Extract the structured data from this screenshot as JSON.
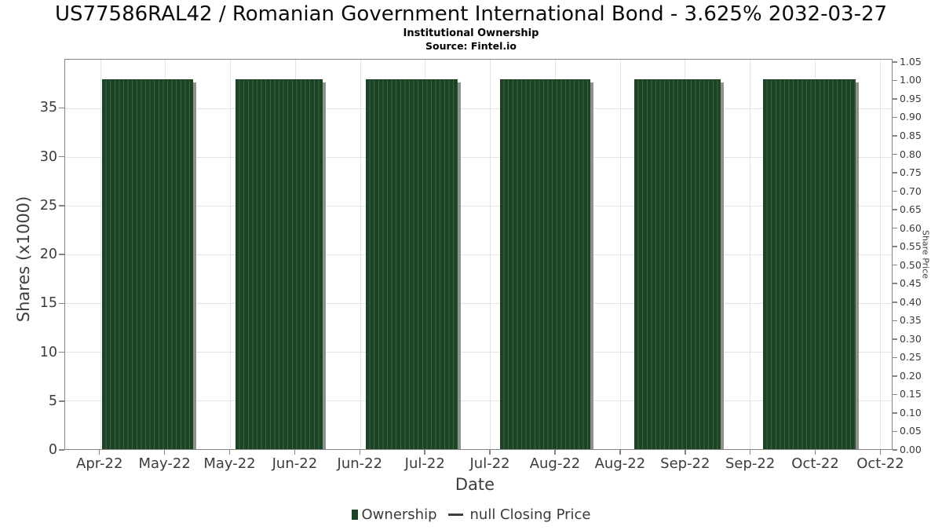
{
  "chart_data": {
    "type": "bar",
    "title": "US77586RAL42 / Romanian Government International Bond - 3.625% 2032-03-27",
    "subtitle": "Institutional Ownership",
    "source": "Source: Fintel.io",
    "xlabel": "Date",
    "ylabel_left": "Shares (x1000)",
    "ylabel_right": "Share Price",
    "grid": true,
    "legend_position": "bottom-center",
    "x_tick_labels": [
      "Apr-22",
      "May-22",
      "May-22",
      "Jun-22",
      "Jun-22",
      "Jul-22",
      "Jul-22",
      "Aug-22",
      "Aug-22",
      "Sep-22",
      "Sep-22",
      "Oct-22",
      "Oct-22"
    ],
    "x_ticks_pct": [
      4.24,
      12.1,
      19.95,
      27.81,
      35.67,
      43.53,
      51.38,
      59.24,
      67.1,
      74.96,
      82.81,
      90.67,
      98.53
    ],
    "left_axis": {
      "min": 0,
      "max": 40,
      "ticks": [
        0,
        5,
        10,
        15,
        20,
        25,
        30,
        35
      ]
    },
    "right_axis": {
      "min": 0,
      "max": 1.0583,
      "tick_labels": [
        "0.00",
        "0.05",
        "0.10",
        "0.15",
        "0.20",
        "0.25",
        "0.30",
        "0.35",
        "0.40",
        "0.45",
        "0.50",
        "0.55",
        "0.60",
        "0.65",
        "0.70",
        "0.75",
        "0.80",
        "0.85",
        "0.90",
        "0.95",
        "1.00",
        "1.05"
      ]
    },
    "series": [
      {
        "name": "Ownership",
        "kind": "bar",
        "color": "#1a4423",
        "periods": [
          "Apr-22",
          "May-22",
          "Jun-22",
          "Jul-22",
          "Aug-22",
          "Sep-22/Oct-22"
        ],
        "values": [
          38,
          38,
          38,
          38,
          38,
          38
        ]
      },
      {
        "name": "null Closing Price",
        "kind": "line",
        "color": "#3f3f3f",
        "values": []
      }
    ],
    "bars": [
      {
        "left_pct": 4.455,
        "width_pct": 10.995,
        "value": 38
      },
      {
        "left_pct": 20.57,
        "width_pct": 10.616,
        "value": 38
      },
      {
        "left_pct": 36.398,
        "width_pct": 11.09,
        "value": 38
      },
      {
        "left_pct": 52.607,
        "width_pct": 10.9,
        "value": 38
      },
      {
        "left_pct": 68.815,
        "width_pct": 10.52,
        "value": 38
      },
      {
        "left_pct": 84.455,
        "width_pct": 11.185,
        "value": 38
      }
    ],
    "legend": {
      "items": [
        {
          "label": "Ownership",
          "marker": "square",
          "color": "#1a4423"
        },
        {
          "label": "null Closing Price",
          "marker": "line",
          "color": "#3f3f3f"
        }
      ]
    },
    "colors": {
      "bar_fill": "#1a4423",
      "bar_stripe": "#3f6347",
      "bar_shadow": "#8f8f8f",
      "gridline": "#e4e4e4",
      "spine": "#848484",
      "tick_text": "#3c3c3c"
    }
  }
}
